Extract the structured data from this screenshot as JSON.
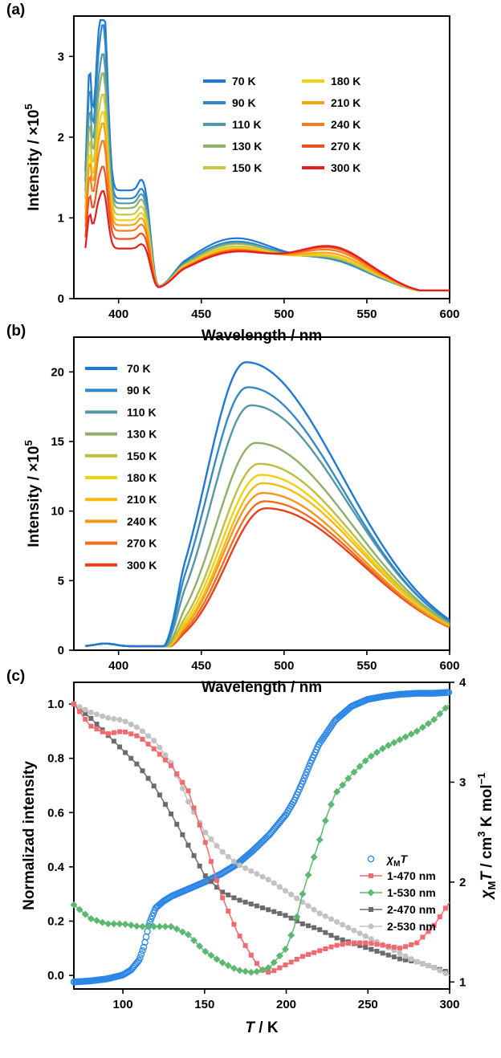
{
  "chart_data": [
    {
      "id": "a",
      "panel_label": "(a)",
      "type": "line",
      "xlabel": "Wavelength / nm",
      "ylabel": "Intensity / ×10",
      "ylabel_sup": "5",
      "xlim": [
        373,
        600
      ],
      "ylim": [
        0,
        3.5
      ],
      "xticks": [
        400,
        450,
        500,
        550,
        600
      ],
      "yticks": [
        0,
        1,
        2,
        3
      ],
      "legend_position": "upper-right, two columns",
      "series": [
        {
          "name": "70 K",
          "color": "#1f78d4",
          "peak": 3.2,
          "shoulder": 1.22,
          "blue": 0.62,
          "red": 0.3
        },
        {
          "name": "90 K",
          "color": "#2f86c8",
          "peak": 2.93,
          "shoulder": 1.12,
          "blue": 0.58,
          "red": 0.31
        },
        {
          "name": "110 K",
          "color": "#4f9aa5",
          "peak": 2.52,
          "shoulder": 1.06,
          "blue": 0.56,
          "red": 0.32
        },
        {
          "name": "130 K",
          "color": "#8db06c",
          "peak": 2.28,
          "shoulder": 1.0,
          "blue": 0.55,
          "red": 0.33
        },
        {
          "name": "150 K",
          "color": "#c8c840",
          "peak": 2.03,
          "shoulder": 0.92,
          "blue": 0.52,
          "red": 0.34
        },
        {
          "name": "180 K",
          "color": "#f5cf12",
          "peak": 1.83,
          "shoulder": 0.85,
          "blue": 0.5,
          "red": 0.36
        },
        {
          "name": "210 K",
          "color": "#f7a21c",
          "peak": 1.72,
          "shoulder": 0.79,
          "blue": 0.48,
          "red": 0.39
        },
        {
          "name": "240 K",
          "color": "#f57c1e",
          "peak": 1.52,
          "shoulder": 0.72,
          "blue": 0.47,
          "red": 0.43
        },
        {
          "name": "270 K",
          "color": "#f0501e",
          "peak": 1.22,
          "shoulder": 0.62,
          "blue": 0.46,
          "red": 0.46
        },
        {
          "name": "300 K",
          "color": "#e41e1e",
          "peak": 0.97,
          "shoulder": 0.5,
          "blue": 0.45,
          "red": 0.48
        }
      ]
    },
    {
      "id": "b",
      "panel_label": "(b)",
      "type": "line",
      "xlabel": "Wavelength / nm",
      "ylabel": "Intensity / ×10",
      "ylabel_sup": "5",
      "xlim": [
        373,
        600
      ],
      "ylim": [
        0,
        22.5
      ],
      "xticks": [
        400,
        450,
        500,
        550,
        600
      ],
      "yticks": [
        0,
        5,
        10,
        15,
        20
      ],
      "legend_position": "upper-left",
      "series": [
        {
          "name": "70 K",
          "color": "#1f78d4",
          "peak": 20.7,
          "peak_x": 477
        },
        {
          "name": "90 K",
          "color": "#3689c6",
          "peak": 18.9,
          "peak_x": 478
        },
        {
          "name": "110 K",
          "color": "#5498a0",
          "peak": 17.6,
          "peak_x": 480
        },
        {
          "name": "130 K",
          "color": "#8fae6a",
          "peak": 14.9,
          "peak_x": 483
        },
        {
          "name": "150 K",
          "color": "#bdbe3f",
          "peak": 13.4,
          "peak_x": 485
        },
        {
          "name": "180 K",
          "color": "#f2cf10",
          "peak": 12.6,
          "peak_x": 486
        },
        {
          "name": "210 K",
          "color": "#f6bb12",
          "peak": 12.0,
          "peak_x": 487
        },
        {
          "name": "240 K",
          "color": "#f5961b",
          "peak": 11.3,
          "peak_x": 487
        },
        {
          "name": "270 K",
          "color": "#f26e1c",
          "peak": 10.7,
          "peak_x": 488
        },
        {
          "name": "300 K",
          "color": "#e8401c",
          "peak": 10.2,
          "peak_x": 489
        }
      ]
    },
    {
      "id": "c",
      "panel_label": "(c)",
      "type": "scatter-line",
      "xlabel": "T / K",
      "ylabel": "Normalizad intensity",
      "y2label": "χMT / cm3 K mol−1",
      "xlim": [
        70,
        300
      ],
      "ylim": [
        -0.05,
        1.08
      ],
      "y2lim": [
        0.93,
        4.0
      ],
      "xticks": [
        100,
        150,
        200,
        250,
        300
      ],
      "yticks": [
        0.0,
        0.2,
        0.4,
        0.6,
        0.8,
        1.0
      ],
      "y2ticks": [
        1,
        2,
        3,
        4
      ],
      "legend_position": "right-middle",
      "series": [
        {
          "name": "χMT",
          "axis": "right",
          "color": "#2a86e6",
          "marker": "open-circle",
          "x": [
            70,
            80,
            90,
            100,
            105,
            110,
            113,
            116,
            120,
            125,
            130,
            140,
            150,
            160,
            170,
            180,
            190,
            200,
            205,
            210,
            215,
            220,
            230,
            240,
            250,
            260,
            270,
            280,
            290,
            300
          ],
          "y": [
            1.0,
            1.01,
            1.03,
            1.07,
            1.12,
            1.22,
            1.36,
            1.58,
            1.74,
            1.81,
            1.86,
            1.93,
            2.0,
            2.08,
            2.18,
            2.32,
            2.48,
            2.68,
            2.82,
            3.0,
            3.2,
            3.38,
            3.62,
            3.76,
            3.83,
            3.86,
            3.88,
            3.89,
            3.89,
            3.9
          ]
        },
        {
          "name": "1-470 nm",
          "axis": "left",
          "color": "#f06a70",
          "marker": "square",
          "x": [
            70,
            80,
            90,
            100,
            110,
            120,
            130,
            140,
            150,
            160,
            170,
            180,
            185,
            190,
            200,
            210,
            220,
            230,
            240,
            250,
            260,
            270,
            280,
            290,
            300
          ],
          "y": [
            1.0,
            0.92,
            0.89,
            0.9,
            0.88,
            0.83,
            0.77,
            0.68,
            0.5,
            0.3,
            0.16,
            0.06,
            0.02,
            0.01,
            0.04,
            0.07,
            0.09,
            0.11,
            0.12,
            0.12,
            0.11,
            0.1,
            0.12,
            0.18,
            0.27
          ]
        },
        {
          "name": "1-530 nm",
          "axis": "left",
          "color": "#5cb870",
          "marker": "diamond",
          "x": [
            70,
            80,
            90,
            100,
            110,
            120,
            130,
            140,
            150,
            160,
            170,
            180,
            190,
            200,
            205,
            210,
            215,
            220,
            225,
            230,
            240,
            250,
            260,
            270,
            280,
            290,
            300
          ],
          "y": [
            0.26,
            0.21,
            0.19,
            0.19,
            0.18,
            0.18,
            0.18,
            0.15,
            0.09,
            0.05,
            0.02,
            0.01,
            0.03,
            0.1,
            0.18,
            0.3,
            0.4,
            0.49,
            0.59,
            0.67,
            0.74,
            0.8,
            0.84,
            0.87,
            0.9,
            0.94,
            1.0
          ]
        },
        {
          "name": "2-470 nm",
          "axis": "left",
          "color": "#6b6b6b",
          "marker": "square",
          "x": [
            70,
            80,
            90,
            100,
            110,
            120,
            130,
            140,
            150,
            160,
            170,
            180,
            190,
            200,
            210,
            220,
            230,
            240,
            250,
            260,
            270,
            280,
            290,
            300
          ],
          "y": [
            1.0,
            0.95,
            0.89,
            0.83,
            0.77,
            0.69,
            0.59,
            0.48,
            0.37,
            0.31,
            0.28,
            0.26,
            0.24,
            0.22,
            0.19,
            0.17,
            0.14,
            0.12,
            0.1,
            0.08,
            0.06,
            0.05,
            0.03,
            0.01
          ]
        },
        {
          "name": "2-530 nm",
          "axis": "left",
          "color": "#c2c2c2",
          "marker": "circle",
          "x": [
            70,
            80,
            90,
            100,
            110,
            120,
            130,
            140,
            150,
            160,
            170,
            180,
            190,
            200,
            210,
            220,
            230,
            240,
            250,
            260,
            270,
            280,
            290,
            300
          ],
          "y": [
            1.0,
            0.97,
            0.95,
            0.94,
            0.91,
            0.86,
            0.78,
            0.64,
            0.53,
            0.46,
            0.41,
            0.38,
            0.35,
            0.31,
            0.27,
            0.23,
            0.2,
            0.17,
            0.14,
            0.11,
            0.08,
            0.05,
            0.03,
            0.0
          ]
        }
      ]
    }
  ]
}
